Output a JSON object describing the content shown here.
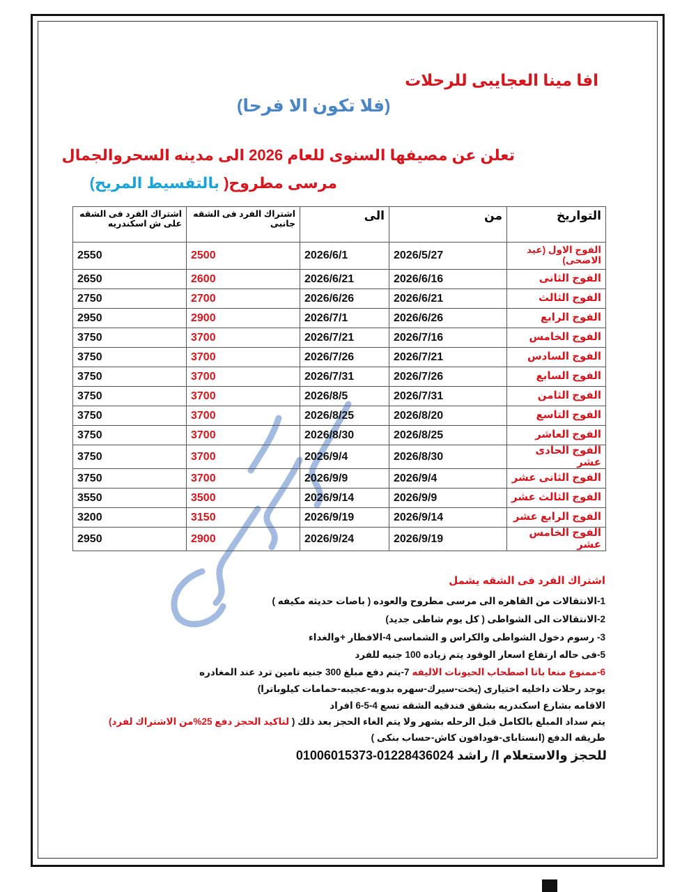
{
  "header": {
    "title": "افا مينا العجايبى للرحلات",
    "tagline": "(فلا تكون الا فرحا)",
    "announcement_line1": "تعلن عن مصيفها السنوى للعام 2026 الى مدينه السحروالجمال",
    "announcement_line2_a": "مرسى مطروح(",
    "announcement_line2_b": " بالتقسيط المريح)"
  },
  "table": {
    "headers": [
      "التواريخ",
      "من",
      "الى",
      "اشتراك الفرد فى الشقه جانبى",
      "اشتراك الفرد فى الشقه على ش اسكندريه"
    ],
    "rows": [
      {
        "name": "الفوج الاول (عيد الاضحى)",
        "from": "2026/5/27",
        "to": "2026/6/1",
        "side": "2500",
        "alex": "2550"
      },
      {
        "name": "الفوج الثانى",
        "from": "2026/6/16",
        "to": "2026/6/21",
        "side": "2600",
        "alex": "2650"
      },
      {
        "name": "الفوج الثالث",
        "from": "2026/6/21",
        "to": "2026/6/26",
        "side": "2700",
        "alex": "2750"
      },
      {
        "name": "الفوج الرابع",
        "from": "2026/6/26",
        "to": "2026/7/1",
        "side": "2900",
        "alex": "2950"
      },
      {
        "name": "الفوج الخامس",
        "from": "2026/7/16",
        "to": "2026/7/21",
        "side": "3700",
        "alex": "3750"
      },
      {
        "name": "الفوج السادس",
        "from": "2026/7/21",
        "to": "2026/7/26",
        "side": "3700",
        "alex": "3750"
      },
      {
        "name": "الفوج السابع",
        "from": "2026/7/26",
        "to": "2026/7/31",
        "side": "3700",
        "alex": "3750"
      },
      {
        "name": "الفوج الثامن",
        "from": "2026/7/31",
        "to": "2026/8/5",
        "side": "3700",
        "alex": "3750"
      },
      {
        "name": "الفوج التاسع",
        "from": "2026/8/20",
        "to": "2026/8/25",
        "side": "3700",
        "alex": "3750"
      },
      {
        "name": "الفوج العاشر",
        "from": "2026/8/25",
        "to": "2026/8/30",
        "side": "3700",
        "alex": "3750"
      },
      {
        "name": "الفوج الحادى عشر",
        "from": "2026/8/30",
        "to": "2026/9/4",
        "side": "3700",
        "alex": "3750"
      },
      {
        "name": "الفوج الثانى عشر",
        "from": "2026/9/4",
        "to": "2026/9/9",
        "side": "3700",
        "alex": "3750"
      },
      {
        "name": "الفوج الثالث عشر",
        "from": "2026/9/9",
        "to": "2026/9/14",
        "side": "3500",
        "alex": "3550"
      },
      {
        "name": "الفوج الرابع عشر",
        "from": "2026/9/14",
        "to": "2026/9/19",
        "side": "3150",
        "alex": "3200"
      },
      {
        "name": "الفوج الخامس عشر",
        "from": "2026/9/19",
        "to": "2026/9/24",
        "side": "2900",
        "alex": "2950"
      }
    ]
  },
  "includes": {
    "title": "اشتراك الفرد فى الشقه يشمل",
    "line1": "1-الانتقالات من القاهره الى مرسى مطروح والعوده ( باصات حديثه مكيفه )",
    "line2": "2-الانتقالات الى الشواطى ( كل يوم شاطى جديد)",
    "line3": "3- رسوم دخول الشواطى والكراس و الشماسى    4-الافطار +والغداء",
    "line4": "5-فى حاله ارتفاع اسعار الوقود يتم زياده 100 جنيه للفرد",
    "line5_red": "6-ممنوع منعا باتا اصطحاب الحيونات الاليفه",
    "line5_black": "    7-يتم دفع مبلغ 300 جنيه تامين ترد عند المغادره",
    "line6": "يوجد رحلات داخليه اختيارى (يخت-سيرك-سهره بدويه-عجيبه-حمامات كيلوباترا)",
    "line7": "الاقامه بشارع اسكندريه بشقق فندقيه الشقه تسع 4-5-6 افراد",
    "line8_black": "يتم سداد المبلغ بالكامل قبل الرحله بشهر ولا يتم الغاء الحجز بعد ذلك (",
    "line8_red": " لتاكيد الحجز دفع 25%من الاشتراك لفرد)",
    "line9": "طريقه الدفع (انستاباى-فودافون كاش-حساب بنكى )"
  },
  "contact": "للحجز والاستعلام ا/ راشد 01228436024-01006015373",
  "watermark": "افا مينا العجايبى",
  "colors": {
    "red": "#d8141c",
    "blue": "#4a86c5",
    "cyan": "#1aa3d9"
  }
}
